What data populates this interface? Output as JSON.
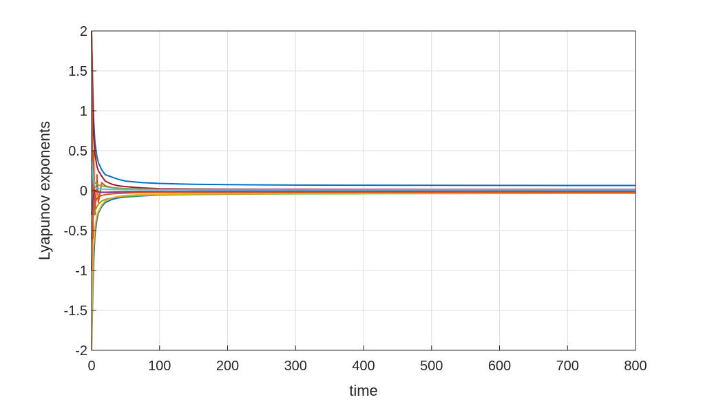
{
  "chart_data": {
    "type": "line",
    "title": "",
    "xlabel": "time",
    "ylabel": "Lyapunov exponents",
    "xlim": [
      0,
      800
    ],
    "ylim": [
      -2,
      2
    ],
    "x_ticks": [
      0,
      100,
      200,
      300,
      400,
      500,
      600,
      700,
      800
    ],
    "x_tick_labels": [
      "0",
      "100",
      "200",
      "300",
      "400",
      "500",
      "600",
      "700",
      "800"
    ],
    "y_ticks": [
      -2,
      -1.5,
      -1,
      -0.5,
      0,
      0.5,
      1,
      1.5,
      2
    ],
    "y_tick_labels": [
      "-2",
      "-1.5",
      "-1",
      "-0.5",
      "0",
      "0.5",
      "1",
      "1.5",
      "2"
    ],
    "grid": true,
    "legend": "none",
    "x": [
      0,
      1,
      2,
      3,
      5,
      8,
      10,
      15,
      20,
      30,
      40,
      50,
      75,
      100,
      150,
      200,
      300,
      400,
      500,
      600,
      700,
      800
    ],
    "series": [
      {
        "color": "#0072BD",
        "values": [
          2,
          1.6,
          1.2,
          0.9,
          0.6,
          0.42,
          0.35,
          0.26,
          0.2,
          0.17,
          0.14,
          0.12,
          0.1,
          0.09,
          0.08,
          0.075,
          0.07,
          0.068,
          0.067,
          0.066,
          0.065,
          0.065
        ]
      },
      {
        "color": "#0072BD",
        "values": [
          -2,
          -1.6,
          -1.2,
          -0.9,
          -0.55,
          -0.35,
          -0.28,
          -0.2,
          -0.15,
          -0.11,
          -0.09,
          -0.08,
          -0.065,
          -0.055,
          -0.045,
          -0.04,
          -0.035,
          -0.032,
          -0.03,
          -0.028,
          -0.027,
          -0.026
        ]
      },
      {
        "color": "#A2142F",
        "values": [
          2,
          1.5,
          1.0,
          0.7,
          0.45,
          0.3,
          0.25,
          0.18,
          0.12,
          0.08,
          0.06,
          0.05,
          0.035,
          0.025,
          0.02,
          0.018,
          0.017,
          0.016,
          0.015,
          0.015,
          0.015,
          0.015
        ]
      },
      {
        "color": "#D95319",
        "values": [
          2,
          0.8,
          -0.6,
          0.5,
          -0.3,
          0.2,
          -0.15,
          0.1,
          0.06,
          0.04,
          0.03,
          0.025,
          0.02,
          0.015,
          0.012,
          0.01,
          0.008,
          0.007,
          0.006,
          0.006,
          0.005,
          0.005
        ]
      },
      {
        "color": "#77AC30",
        "values": [
          0.3,
          0.2,
          0.15,
          0.12,
          0.1,
          0.08,
          0.07,
          0.06,
          0.05,
          0.04,
          0.03,
          0.025,
          0.02,
          0.015,
          0.012,
          0.01,
          0.009,
          0.008,
          0.008,
          0.008,
          0.008,
          0.008
        ]
      },
      {
        "color": "#7E2F8E",
        "values": [
          -0.3,
          -0.2,
          -0.1,
          -0.05,
          0.0,
          -0.01,
          -0.015,
          -0.02,
          -0.02,
          -0.018,
          -0.016,
          -0.015,
          -0.013,
          -0.012,
          -0.011,
          -0.01,
          -0.01,
          -0.01,
          -0.01,
          -0.01,
          -0.01,
          -0.01
        ]
      },
      {
        "color": "#4DBEEE",
        "values": [
          0.4,
          0.3,
          0.2,
          0.1,
          0.05,
          0.03,
          0.025,
          0.02,
          0.018,
          0.016,
          0.015,
          0.014,
          0.013,
          0.012,
          0.011,
          0.01,
          0.01,
          0.01,
          0.01,
          0.01,
          0.01,
          0.01
        ]
      },
      {
        "color": "#77AC30",
        "values": [
          -0.6,
          -0.45,
          -0.35,
          -0.3,
          -0.25,
          -0.2,
          -0.17,
          -0.13,
          -0.11,
          -0.09,
          -0.08,
          -0.07,
          -0.06,
          -0.055,
          -0.05,
          -0.045,
          -0.04,
          -0.038,
          -0.037,
          -0.036,
          -0.035,
          -0.035
        ]
      },
      {
        "color": "#EDB120",
        "values": [
          -2,
          -1.4,
          -0.9,
          -0.7,
          -0.45,
          -0.3,
          -0.26,
          -0.18,
          -0.13,
          -0.09,
          -0.07,
          -0.06,
          -0.05,
          -0.045,
          -0.04,
          -0.038,
          -0.035,
          -0.034,
          -0.033,
          -0.032,
          -0.031,
          -0.03
        ]
      },
      {
        "color": "#D95319",
        "values": [
          -1.0,
          -0.6,
          -0.35,
          -0.25,
          -0.15,
          -0.1,
          -0.08,
          -0.06,
          -0.05,
          -0.04,
          -0.035,
          -0.03,
          -0.025,
          -0.022,
          -0.02,
          -0.02,
          -0.02,
          -0.02,
          -0.02,
          -0.02,
          -0.02,
          -0.02
        ]
      }
    ]
  }
}
